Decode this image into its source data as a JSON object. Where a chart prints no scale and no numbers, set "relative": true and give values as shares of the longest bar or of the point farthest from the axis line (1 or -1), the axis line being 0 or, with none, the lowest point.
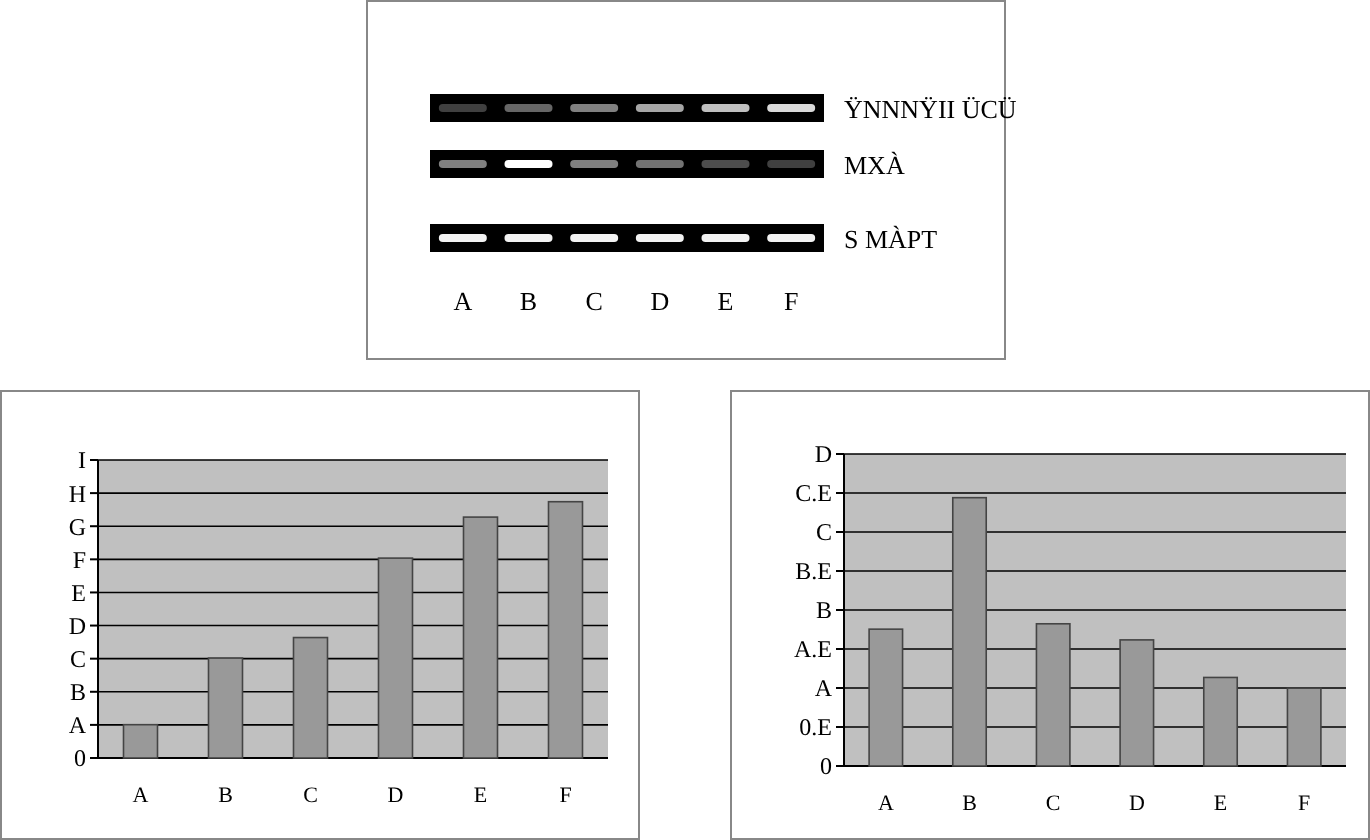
{
  "chart_data": [
    {
      "type": "other",
      "categories": [
        "A",
        "B",
        "C",
        "D",
        "E",
        "F"
      ],
      "annotations": [
        "ŸNNNŸII ÜCÜ",
        "MXÀ",
        "S MÀPT"
      ]
    },
    {
      "type": "bar",
      "categories": [
        "A",
        "B",
        "C",
        "D",
        "E",
        "F"
      ],
      "values": [
        0.13,
        0.39,
        0.47,
        0.78,
        0.94,
        1
      ],
      "color": "#999999",
      "relative": true,
      "annotations": [
        "0",
        "A",
        "B",
        "C",
        "D",
        "E",
        "F",
        "G",
        "H",
        "I"
      ],
      "grid": "y"
    },
    {
      "type": "bar",
      "categories": [
        "A",
        "B",
        "C",
        "D",
        "E",
        "F"
      ],
      "values": [
        0.51,
        1,
        0.53,
        0.47,
        0.33,
        0.29
      ],
      "color": "#999999",
      "relative": true,
      "annotations": [
        "0",
        "0.E",
        "A",
        "A.E",
        "B",
        "B.E",
        "C",
        "C.E",
        "D"
      ],
      "grid": "y"
    }
  ]
}
